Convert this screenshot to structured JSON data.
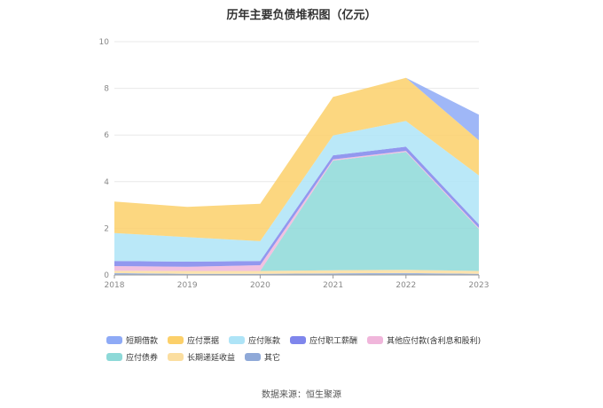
{
  "source": "数据来源：恒生聚源",
  "chart_data": {
    "type": "area",
    "stacked": true,
    "title": "历年主要负债堆积图（亿元）",
    "xlabel": "",
    "ylabel": "",
    "x": [
      "2018",
      "2019",
      "2020",
      "2021",
      "2022",
      "2023"
    ],
    "ylim": [
      0,
      10
    ],
    "yticks": [
      0,
      2,
      4,
      6,
      8,
      10
    ],
    "grid": true,
    "legend_position": "bottom",
    "series": [
      {
        "name": "其它",
        "color": "#8fa9d8",
        "values": [
          0.08,
          0.05,
          0.05,
          0.07,
          0.08,
          0.05
        ]
      },
      {
        "name": "长期递延收益",
        "color": "#fbdea0",
        "values": [
          0.1,
          0.12,
          0.12,
          0.13,
          0.14,
          0.12
        ]
      },
      {
        "name": "应付债券",
        "color": "#8dd9d8",
        "values": [
          0.0,
          0.0,
          0.0,
          4.7,
          5.05,
          1.8
        ]
      },
      {
        "name": "其他应付款(含利息和股利)",
        "color": "#f0b6db",
        "values": [
          0.2,
          0.18,
          0.25,
          0.05,
          0.05,
          0.05
        ]
      },
      {
        "name": "应付职工薪酬",
        "color": "#7f86ec",
        "values": [
          0.22,
          0.22,
          0.18,
          0.18,
          0.18,
          0.15
        ]
      },
      {
        "name": "应付账款",
        "color": "#aee4f7",
        "values": [
          1.2,
          1.05,
          0.85,
          0.85,
          1.1,
          2.1
        ]
      },
      {
        "name": "应付票据",
        "color": "#fcd06a",
        "values": [
          1.35,
          1.3,
          1.6,
          1.65,
          1.85,
          1.5
        ]
      },
      {
        "name": "短期借款",
        "color": "#8eaaf6",
        "values": [
          0.0,
          0.0,
          0.0,
          0.0,
          0.0,
          1.1
        ]
      }
    ],
    "legend_order": [
      "短期借款",
      "应付票据",
      "应付账款",
      "应付职工薪酬",
      "其他应付款(含利息和股利)",
      "应付债券",
      "长期递延收益",
      "其它"
    ]
  }
}
